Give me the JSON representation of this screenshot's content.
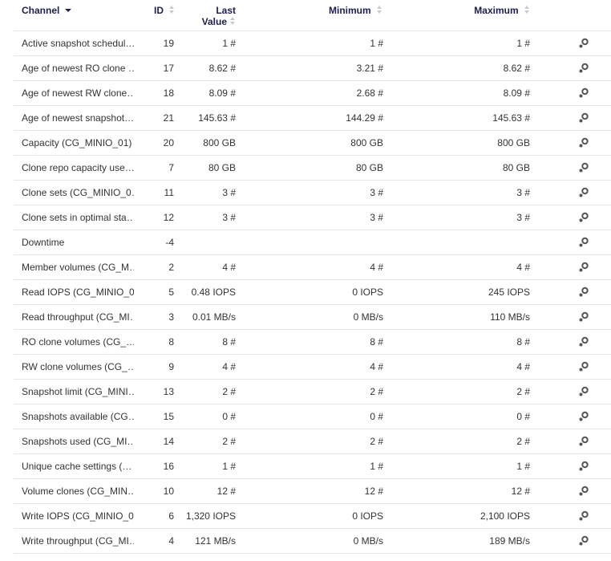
{
  "columns": {
    "channel": "Channel",
    "id": "ID",
    "last_value": "Last Value",
    "last_value_l1": "Last",
    "last_value_l2": "Value",
    "minimum": "Minimum",
    "maximum": "Maximum"
  },
  "icons": {
    "sort_desc": "caret-down-icon",
    "sort_both": "sort-icon",
    "action": "gear-icon"
  },
  "colors": {
    "header_text": "#1e1e50",
    "row_text": "#333333",
    "divider": "#e6e6e6",
    "icon": "#555555"
  },
  "rows": [
    {
      "channel": "Active snapshot schedul…",
      "id": "19",
      "last": "1 #",
      "min": "1 #",
      "max": "1 #"
    },
    {
      "channel": "Age of newest RO clone …",
      "id": "17",
      "last": "8.62 #",
      "min": "3.21 #",
      "max": "8.62 #"
    },
    {
      "channel": "Age of newest RW clone…",
      "id": "18",
      "last": "8.09 #",
      "min": "2.68 #",
      "max": "8.09 #"
    },
    {
      "channel": "Age of newest snapshot…",
      "id": "21",
      "last": "145.63 #",
      "min": "144.29 #",
      "max": "145.63 #"
    },
    {
      "channel": "Capacity (CG_MINIO_01)",
      "id": "20",
      "last": "800 GB",
      "min": "800 GB",
      "max": "800 GB"
    },
    {
      "channel": "Clone repo capacity use…",
      "id": "7",
      "last": "80 GB",
      "min": "80 GB",
      "max": "80 GB"
    },
    {
      "channel": "Clone sets (CG_MINIO_0…",
      "id": "11",
      "last": "3 #",
      "min": "3 #",
      "max": "3 #"
    },
    {
      "channel": "Clone sets in optimal sta…",
      "id": "12",
      "last": "3 #",
      "min": "3 #",
      "max": "3 #"
    },
    {
      "channel": "Downtime",
      "id": "-4",
      "last": "",
      "min": "",
      "max": ""
    },
    {
      "channel": "Member volumes (CG_M…",
      "id": "2",
      "last": "4 #",
      "min": "4 #",
      "max": "4 #"
    },
    {
      "channel": "Read IOPS (CG_MINIO_0…",
      "id": "5",
      "last": "0.48 IOPS",
      "min": "0 IOPS",
      "max": "245 IOPS"
    },
    {
      "channel": "Read throughput (CG_MI…",
      "id": "3",
      "last": "0.01 MB/s",
      "min": "0 MB/s",
      "max": "110 MB/s"
    },
    {
      "channel": "RO clone volumes (CG_…",
      "id": "8",
      "last": "8 #",
      "min": "8 #",
      "max": "8 #"
    },
    {
      "channel": "RW clone volumes (CG_…",
      "id": "9",
      "last": "4 #",
      "min": "4 #",
      "max": "4 #"
    },
    {
      "channel": "Snapshot limit (CG_MINI…",
      "id": "13",
      "last": "2 #",
      "min": "2 #",
      "max": "2 #"
    },
    {
      "channel": "Snapshots available (CG…",
      "id": "15",
      "last": "0 #",
      "min": "0 #",
      "max": "0 #"
    },
    {
      "channel": "Snapshots used (CG_MI…",
      "id": "14",
      "last": "2 #",
      "min": "2 #",
      "max": "2 #"
    },
    {
      "channel": "Unique cache settings (…",
      "id": "16",
      "last": "1 #",
      "min": "1 #",
      "max": "1 #"
    },
    {
      "channel": "Volume clones (CG_MIN…",
      "id": "10",
      "last": "12 #",
      "min": "12 #",
      "max": "12 #"
    },
    {
      "channel": "Write IOPS (CG_MINIO_0…",
      "id": "6",
      "last": "1,320 IOPS",
      "min": "0 IOPS",
      "max": "2,100 IOPS"
    },
    {
      "channel": "Write throughput (CG_MI…",
      "id": "4",
      "last": "121 MB/s",
      "min": "0 MB/s",
      "max": "189 MB/s"
    }
  ]
}
